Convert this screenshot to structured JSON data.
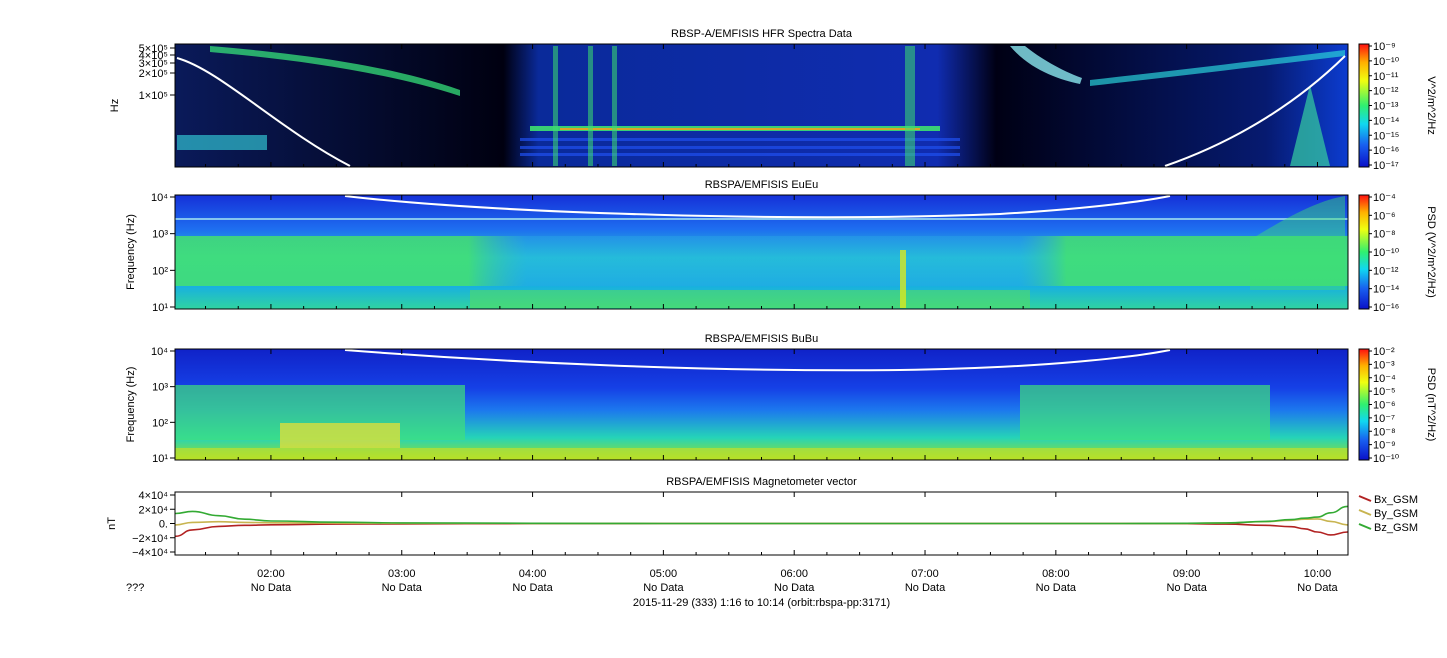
{
  "figure": {
    "footer_label": "???",
    "footer_date": "2015-11-29 (333) 1:16 to 10:14 (orbit:rbspa-pp:3171)",
    "x_ticks": [
      "02:00",
      "03:00",
      "04:00",
      "05:00",
      "06:00",
      "07:00",
      "08:00",
      "09:00",
      "10:00"
    ],
    "x_tick_sublabel": "No Data",
    "colors": {
      "background": "#000000",
      "frame": "#000000",
      "trace": "#ffffff"
    }
  },
  "chart_data": [
    {
      "type": "heatmap",
      "title": "RBSP-A/EMFISIS  HFR Spectra Data",
      "ylabel": "Hz",
      "y_ticks": [
        "5×10⁵",
        "4×10⁵",
        "3×10⁵",
        "2×10⁵",
        "1×10⁵"
      ],
      "y_scale": "log",
      "colorbar_label": "V^2/m^2/Hz",
      "colorbar_ticks": [
        "10⁻⁹",
        "10⁻¹⁰",
        "10⁻¹¹",
        "10⁻¹²",
        "10⁻¹³",
        "10⁻¹⁴",
        "10⁻¹⁵",
        "10⁻¹⁶",
        "10⁻¹⁷"
      ],
      "x_range": [
        "01:16",
        "10:14"
      ]
    },
    {
      "type": "heatmap",
      "title": "RBSPA/EMFISIS  EuEu",
      "ylabel": "Frequency (Hz)",
      "y_ticks": [
        "10⁴",
        "10³",
        "10²",
        "10¹"
      ],
      "y_scale": "log",
      "ylim": [
        10,
        10000
      ],
      "colorbar_label": "PSD (V^2/m^2/Hz)",
      "colorbar_ticks": [
        "10⁻⁴",
        "10⁻⁶",
        "10⁻⁸",
        "10⁻¹⁰",
        "10⁻¹²",
        "10⁻¹⁴",
        "10⁻¹⁶"
      ],
      "x_range": [
        "01:16",
        "10:14"
      ]
    },
    {
      "type": "heatmap",
      "title": "RBSPA/EMFISIS  BuBu",
      "ylabel": "Frequency (Hz)",
      "y_ticks": [
        "10⁴",
        "10³",
        "10²",
        "10¹"
      ],
      "y_scale": "log",
      "ylim": [
        10,
        10000
      ],
      "colorbar_label": "PSD (nT^2/Hz)",
      "colorbar_ticks": [
        "10⁻²",
        "10⁻³",
        "10⁻⁴",
        "10⁻⁵",
        "10⁻⁶",
        "10⁻⁷",
        "10⁻⁸",
        "10⁻⁹",
        "10⁻¹⁰"
      ],
      "x_range": [
        "01:16",
        "10:14"
      ]
    },
    {
      "type": "line",
      "title": "RBSPA/EMFISIS  Magnetometer vector",
      "ylabel": "nT",
      "y_ticks": [
        "4×10⁴",
        "2×10⁴",
        "0.",
        "−2×10⁴",
        "−4×10⁴"
      ],
      "ylim": [
        -40000,
        40000
      ],
      "legend_position": "right",
      "x": [
        1.27,
        1.4,
        1.6,
        1.8,
        2.0,
        2.5,
        3.0,
        4.0,
        5.0,
        6.0,
        7.0,
        8.0,
        8.5,
        9.0,
        9.3,
        9.6,
        9.8,
        9.9,
        10.0,
        10.1,
        10.23
      ],
      "series": [
        {
          "name": "Bx_GSM",
          "color": "#b22222",
          "values": [
            -18000,
            -9000,
            -4000,
            -2500,
            -1800,
            -900,
            -500,
            -200,
            0,
            0,
            0,
            0,
            0,
            -300,
            -800,
            -2500,
            -4500,
            -7500,
            -12000,
            -16000,
            -12000
          ]
        },
        {
          "name": "By_GSM",
          "color": "#c8b450",
          "values": [
            -2000,
            1500,
            2500,
            1500,
            1000,
            600,
            300,
            100,
            0,
            0,
            0,
            0,
            0,
            200,
            700,
            2500,
            4500,
            6000,
            6500,
            3000,
            -2000
          ]
        },
        {
          "name": "Bz_GSM",
          "color": "#33aa33",
          "values": [
            14000,
            17000,
            11000,
            6000,
            3500,
            1800,
            900,
            300,
            0,
            0,
            0,
            0,
            0,
            300,
            900,
            3000,
            5500,
            7500,
            9000,
            15000,
            24000
          ]
        }
      ]
    }
  ]
}
